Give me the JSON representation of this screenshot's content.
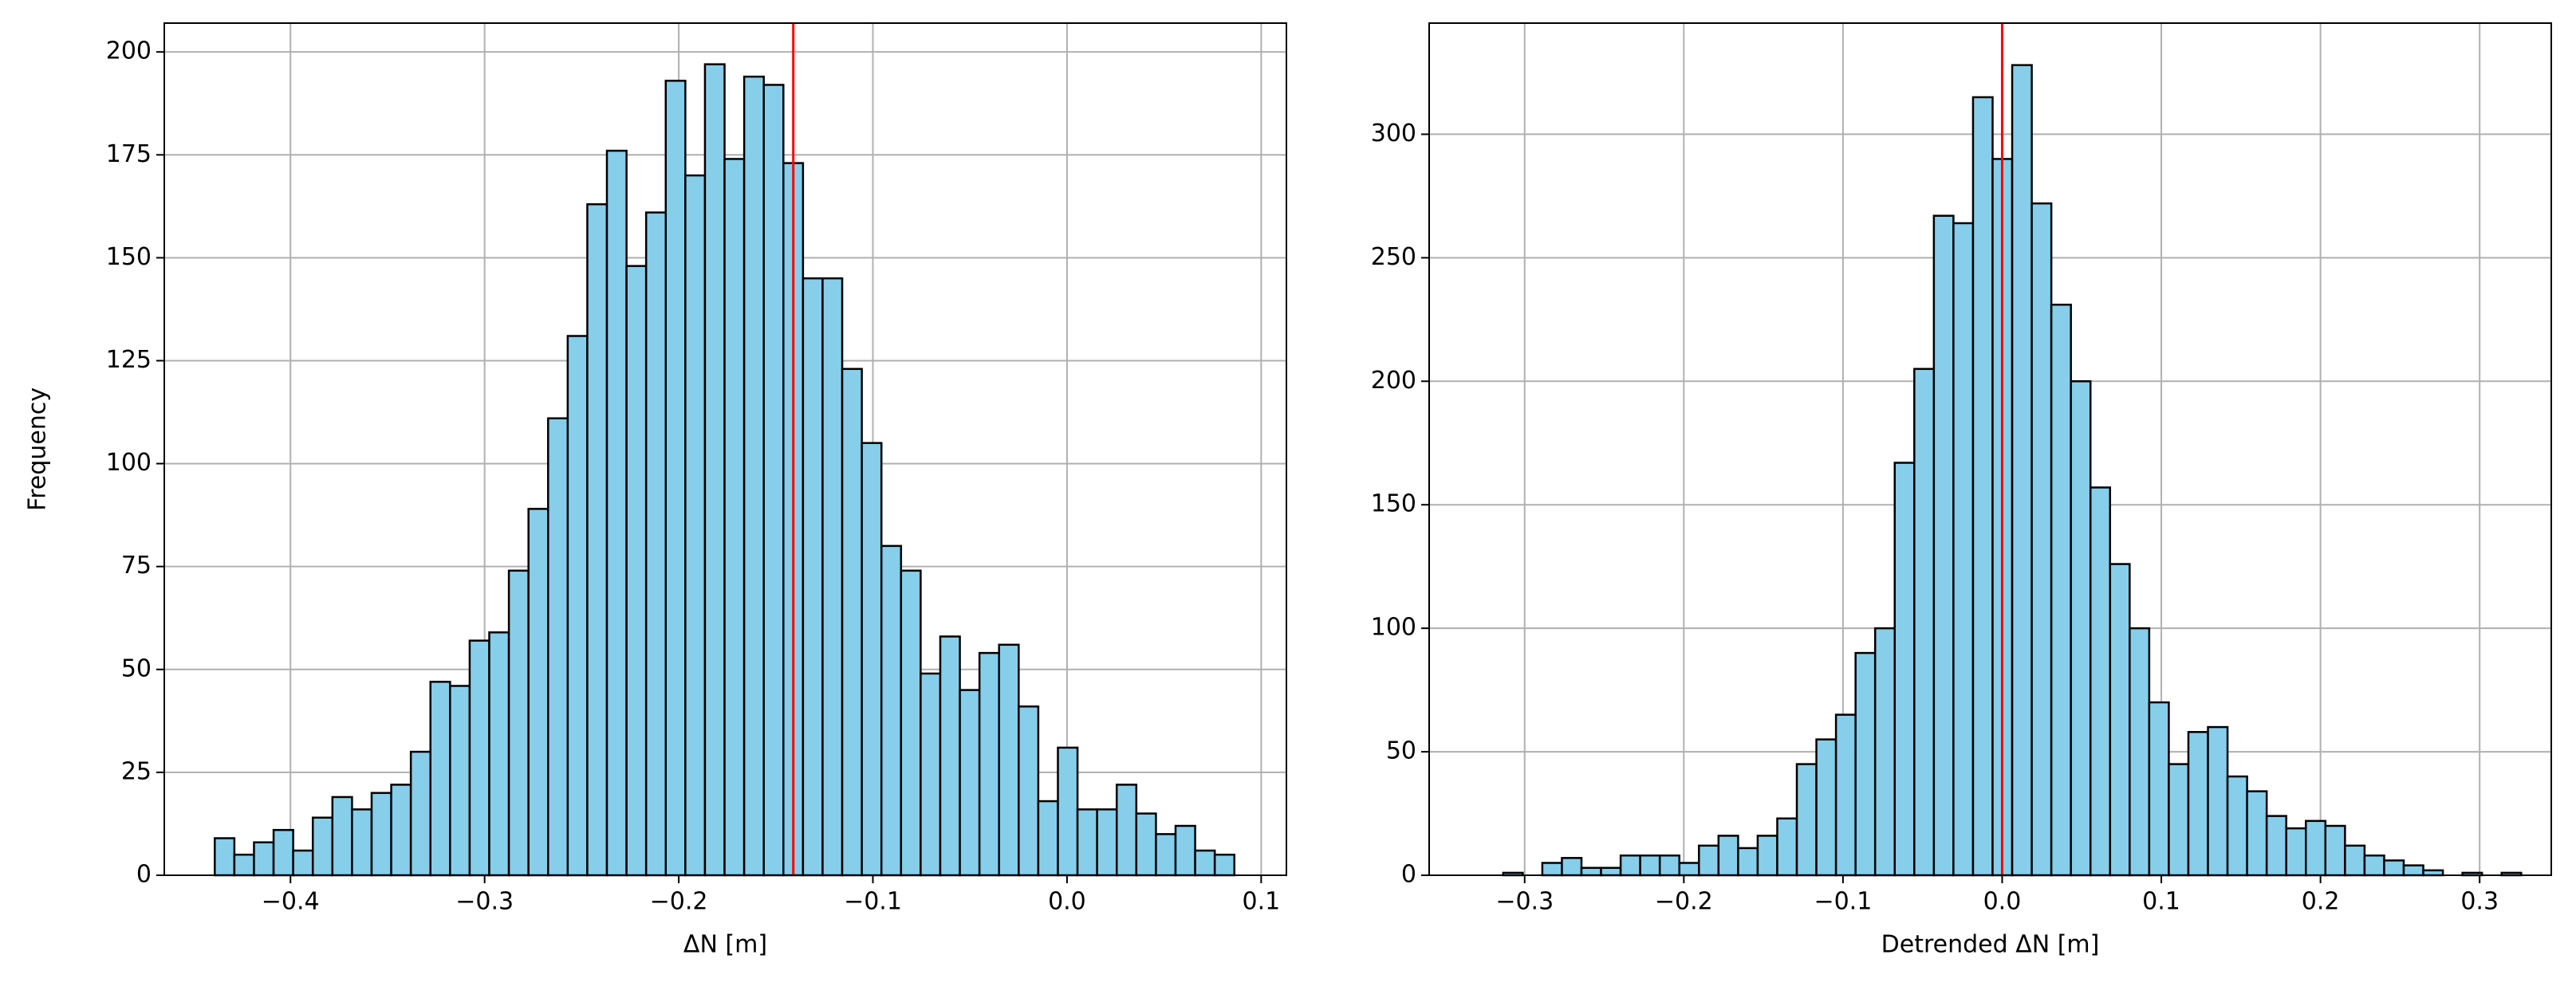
{
  "chart_data": [
    {
      "type": "histogram",
      "xlabel": "ΔN [m]",
      "ylabel": "Frequency",
      "color": "#87ceeb",
      "edgecolor": "#000000",
      "grid": true,
      "bins": [
        -0.439,
        -0.4289,
        -0.4188,
        -0.4087,
        -0.3986,
        -0.3885,
        -0.3784,
        -0.3683,
        -0.3582,
        -0.3481,
        -0.338,
        -0.3279,
        -0.3178,
        -0.3077,
        -0.2976,
        -0.2875,
        -0.2774,
        -0.2673,
        -0.2572,
        -0.2471,
        -0.237,
        -0.2269,
        -0.2168,
        -0.2067,
        -0.1966,
        -0.1865,
        -0.1764,
        -0.1663,
        -0.1562,
        -0.1461,
        -0.136,
        -0.1259,
        -0.1158,
        -0.1057,
        -0.0956,
        -0.0855,
        -0.0754,
        -0.0653,
        -0.0552,
        -0.0451,
        -0.035,
        -0.0249,
        -0.0148,
        -0.0047,
        0.0054,
        0.0155,
        0.0256,
        0.0357,
        0.0458,
        0.0559,
        0.066,
        0.0761,
        0.0862
      ],
      "values": [
        9,
        5,
        8,
        11,
        6,
        14,
        19,
        16,
        20,
        22,
        30,
        47,
        46,
        57,
        59,
        74,
        89,
        111,
        131,
        163,
        176,
        148,
        161,
        193,
        170,
        197,
        174,
        194,
        192,
        173,
        145,
        145,
        123,
        105,
        80,
        74,
        49,
        58,
        45,
        54,
        56,
        41,
        18,
        31,
        16,
        16,
        22,
        15,
        10,
        12,
        6,
        5
      ],
      "vline": {
        "x": -0.141,
        "color": "#ff0000"
      },
      "xlim": [
        -0.465,
        0.113
      ],
      "ylim": [
        0,
        207
      ],
      "xticks": [
        {
          "value": -0.4,
          "label": "−0.4"
        },
        {
          "value": -0.3,
          "label": "−0.3"
        },
        {
          "value": -0.2,
          "label": "−0.2"
        },
        {
          "value": -0.1,
          "label": "−0.1"
        },
        {
          "value": 0,
          "label": "0.0"
        },
        0.1
      ],
      "yticks": [
        0,
        25,
        50,
        75,
        100,
        125,
        150,
        175,
        200
      ]
    },
    {
      "type": "histogram",
      "xlabel": "Detrended ΔN [m]",
      "color": "#87ceeb",
      "edgecolor": "#000000",
      "grid": true,
      "bins": [
        -0.3135,
        -0.3012,
        -0.2889,
        -0.2766,
        -0.2643,
        -0.252,
        -0.2397,
        -0.2274,
        -0.2151,
        -0.2028,
        -0.1905,
        -0.1782,
        -0.1659,
        -0.1536,
        -0.1413,
        -0.129,
        -0.1167,
        -0.1044,
        -0.0921,
        -0.0798,
        -0.0675,
        -0.0552,
        -0.0429,
        -0.0306,
        -0.0183,
        -0.006,
        0.0063,
        0.0186,
        0.0309,
        0.0432,
        0.0555,
        0.0678,
        0.0801,
        0.0924,
        0.1047,
        0.117,
        0.1293,
        0.1416,
        0.1539,
        0.1662,
        0.1785,
        0.1908,
        0.2031,
        0.2154,
        0.2277,
        0.24,
        0.2523,
        0.2646,
        0.2769,
        0.2892,
        0.3015,
        0.3138,
        0.3261
      ],
      "values": [
        1,
        0,
        5,
        7,
        3,
        3,
        8,
        8,
        8,
        5,
        12,
        16,
        11,
        16,
        23,
        45,
        55,
        65,
        90,
        100,
        167,
        205,
        267,
        264,
        315,
        290,
        328,
        272,
        231,
        200,
        157,
        126,
        100,
        70,
        45,
        58,
        60,
        40,
        34,
        24,
        19,
        22,
        20,
        12,
        8,
        6,
        4,
        2,
        0,
        1,
        0,
        1
      ],
      "vline": {
        "x": 0.0,
        "color": "#ff0000"
      },
      "xlim": [
        -0.36,
        0.345
      ],
      "ylim": [
        0,
        345
      ],
      "xticks": [
        {
          "value": -0.3,
          "label": "−0.3"
        },
        {
          "value": -0.2,
          "label": "−0.2"
        },
        {
          "value": -0.1,
          "label": "−0.1"
        },
        {
          "value": 0,
          "label": "0.0"
        },
        0.1,
        0.2,
        0.3
      ],
      "yticks": [
        0,
        50,
        100,
        150,
        200,
        250,
        300
      ]
    }
  ]
}
